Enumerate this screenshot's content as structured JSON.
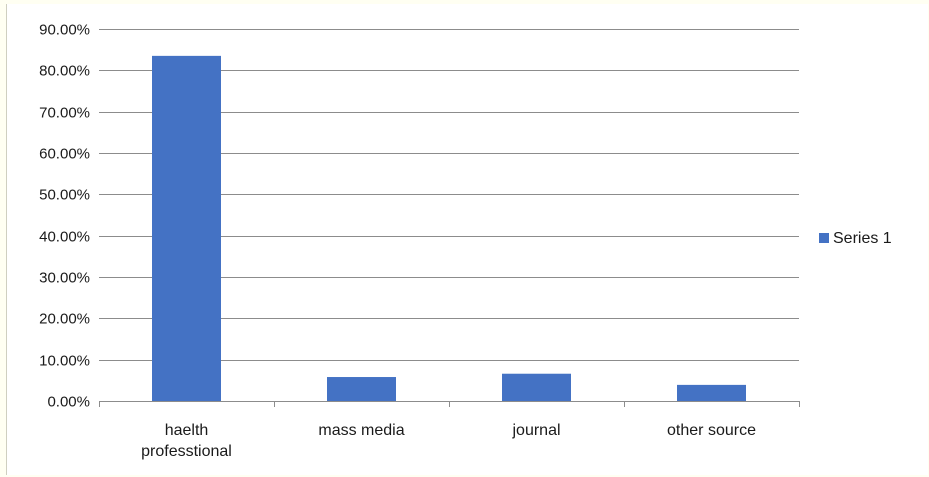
{
  "chart_data": {
    "type": "bar",
    "categories": [
      "haelth professtional",
      "mass media",
      "journal",
      "other source"
    ],
    "category_lines": [
      [
        "haelth",
        "professtional"
      ],
      [
        "mass media"
      ],
      [
        "journal"
      ],
      [
        "other source"
      ]
    ],
    "series": [
      {
        "name": "Series 1",
        "values": [
          0.835,
          0.058,
          0.066,
          0.039
        ],
        "color": "#4472c4"
      }
    ],
    "ylim": [
      0,
      0.9
    ],
    "yticks": [
      0,
      0.1,
      0.2,
      0.3,
      0.4,
      0.5,
      0.6,
      0.7,
      0.8,
      0.9
    ],
    "ytick_labels": [
      "0.00%",
      "10.00%",
      "20.00%",
      "30.00%",
      "40.00%",
      "50.00%",
      "60.00%",
      "70.00%",
      "80.00%",
      "90.00%"
    ],
    "grid": true,
    "legend": "right",
    "title": "",
    "xlabel": "",
    "ylabel": ""
  }
}
